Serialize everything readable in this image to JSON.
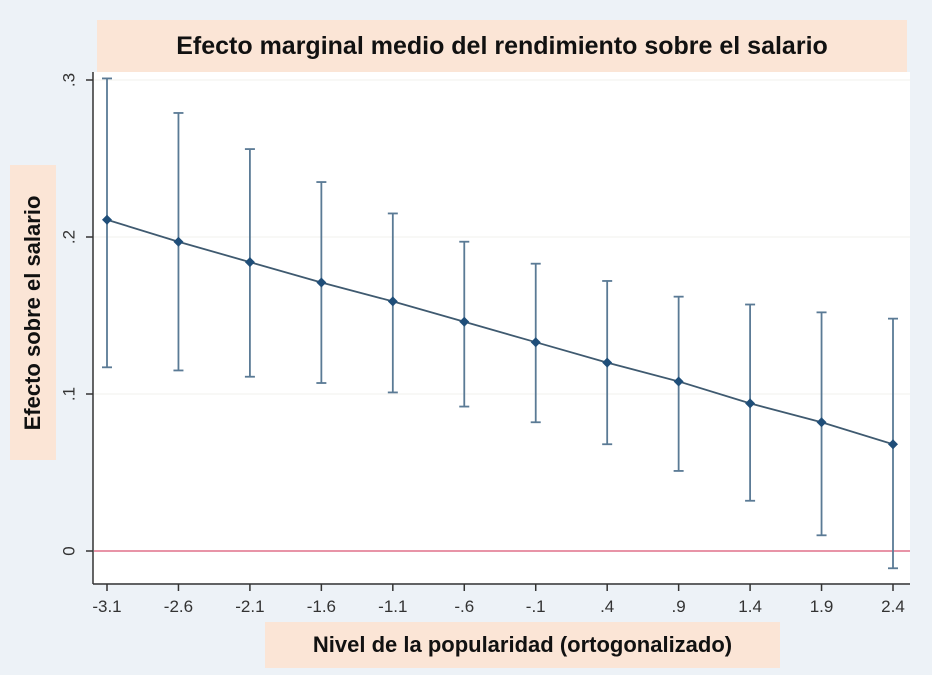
{
  "chart_data": {
    "type": "line",
    "title": "Efecto marginal medio del rendimiento sobre el salario",
    "xlabel": "Nivel de la popularidad (ortogonalizado)",
    "ylabel": "Efecto sobre el salario",
    "x": [
      -3.1,
      -2.6,
      -2.1,
      -1.6,
      -1.1,
      -0.6,
      -0.1,
      0.4,
      0.9,
      1.4,
      1.9,
      2.4
    ],
    "x_tick_labels": [
      "-3.1",
      "-2.6",
      "-2.1",
      "-1.6",
      "-1.1",
      "-.6",
      "-.1",
      ".4",
      ".9",
      "1.4",
      "1.9",
      "2.4"
    ],
    "y_ticks": [
      0,
      0.1,
      0.2,
      0.3
    ],
    "y_tick_labels": [
      "0",
      ".1",
      ".2",
      ".3"
    ],
    "ylim": [
      -0.02,
      0.31
    ],
    "series": [
      {
        "values": [
          0.211,
          0.197,
          0.184,
          0.171,
          0.159,
          0.146,
          0.133,
          0.12,
          0.108,
          0.094,
          0.082,
          0.068
        ],
        "ci_upper": [
          0.301,
          0.279,
          0.256,
          0.235,
          0.215,
          0.197,
          0.183,
          0.172,
          0.162,
          0.157,
          0.152,
          0.148
        ],
        "ci_lower": [
          0.117,
          0.115,
          0.111,
          0.107,
          0.101,
          0.092,
          0.082,
          0.068,
          0.051,
          0.032,
          0.01,
          -0.011
        ]
      }
    ],
    "reference_line_y": 0,
    "grid": true,
    "colors": {
      "series": "#1f4e79",
      "ci": "#5a7a95",
      "reference": "#e0708a",
      "label_box": "#fbe5d6",
      "background": "#edf2f7"
    }
  }
}
